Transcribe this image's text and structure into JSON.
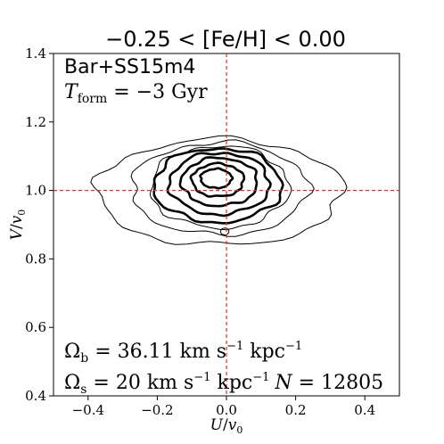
{
  "chart_data": {
    "type": "contour",
    "title": "−0.25 < [Fe/H] < 0.00",
    "xlabel": "U/v0",
    "ylabel": "V/v0",
    "xlim": [
      -0.5,
      0.5
    ],
    "ylim": [
      0.4,
      1.4
    ],
    "x_ticks": [
      "−0.4",
      "−0.2",
      "0.0",
      "0.2",
      "0.4"
    ],
    "y_ticks": [
      "0.4",
      "0.6",
      "0.8",
      "1.0",
      "1.2",
      "1.4"
    ],
    "reference_lines": {
      "x": 0.0,
      "y": 1.0,
      "color": "#e03030",
      "style": "dashed"
    },
    "annotations": {
      "model": "Bar+SS15m4",
      "tform_label": "T",
      "tform_sub": "form",
      "tform_value": " = −3 Gyr",
      "omega_b_label": "Ω",
      "omega_b_sub": "b",
      "omega_b_value": " = 36.11 km s",
      "omega_b_unit_mid": " kpc",
      "omega_s_label": "Ω",
      "omega_s_sub": "s",
      "omega_s_value": " = 20 km s",
      "omega_s_unit_mid": " kpc",
      "exp_minus_one": "−1",
      "n_label": "N",
      "n_value": " = 12805"
    },
    "contours": [
      {
        "level": 1,
        "weight": "thin",
        "cx": -0.02,
        "cy": 0.995,
        "rx": 0.355,
        "ry": 0.155
      },
      {
        "level": 2,
        "weight": "thin",
        "cx": -0.02,
        "cy": 1.005,
        "rx": 0.255,
        "ry": 0.135
      },
      {
        "level": 3,
        "weight": "thin",
        "cx": -0.02,
        "cy": 1.01,
        "rx": 0.2,
        "ry": 0.12
      },
      {
        "level": 4,
        "weight": "thick",
        "cx": -0.025,
        "cy": 1.015,
        "rx": 0.185,
        "ry": 0.108
      },
      {
        "level": 5,
        "weight": "thick",
        "cx": -0.02,
        "cy": 1.02,
        "rx": 0.145,
        "ry": 0.09
      },
      {
        "level": 6,
        "weight": "thick",
        "cx": -0.02,
        "cy": 1.025,
        "rx": 0.11,
        "ry": 0.07
      },
      {
        "level": 7,
        "weight": "thick",
        "cx": -0.025,
        "cy": 1.03,
        "rx": 0.075,
        "ry": 0.048
      },
      {
        "level": 8,
        "weight": "thick",
        "cx": -0.03,
        "cy": 1.035,
        "rx": 0.045,
        "ry": 0.028
      },
      {
        "level": 9,
        "weight": "thin",
        "cx": -0.005,
        "cy": 0.88,
        "rx": 0.012,
        "ry": 0.01
      }
    ]
  }
}
